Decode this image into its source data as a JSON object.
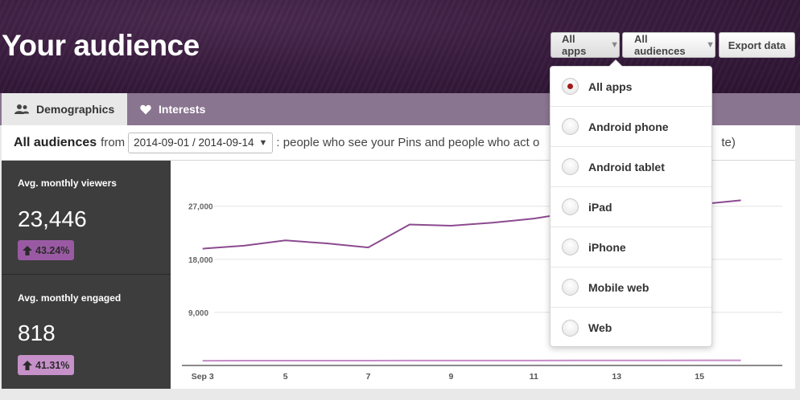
{
  "header": {
    "title": "Your audience",
    "apps_button": "All apps",
    "audiences_button": "All audiences",
    "export_button": "Export data"
  },
  "tabs": [
    {
      "label": "Demographics",
      "icon": "people-icon",
      "active": true
    },
    {
      "label": "Interests",
      "icon": "heart-icon",
      "active": false
    }
  ],
  "filter": {
    "audience": "All audiences",
    "from_word": "from",
    "date_range": "2014-09-01 / 2014-09-14",
    "description_before": ": people who see your Pins and people who act o",
    "description_after": "te)"
  },
  "stats": [
    {
      "label": "Avg. monthly viewers",
      "value": "23,446",
      "change": "43.24%",
      "badge_color": "#9a5aa3"
    },
    {
      "label": "Avg. monthly engaged",
      "value": "818",
      "change": "41.31%",
      "badge_color": "#c690c9"
    }
  ],
  "dropdown": {
    "options": [
      {
        "label": "All apps",
        "checked": true
      },
      {
        "label": "Android phone",
        "checked": false
      },
      {
        "label": "Android tablet",
        "checked": false
      },
      {
        "label": "iPad",
        "checked": false
      },
      {
        "label": "iPhone",
        "checked": false
      },
      {
        "label": "Mobile web",
        "checked": false
      },
      {
        "label": "Web",
        "checked": false
      }
    ]
  },
  "colors": {
    "series_viewers": "#8b4a8f",
    "series_engaged": "#c58bc8",
    "header_bg": "#3a1d40",
    "tabbar_bg": "#8a7590",
    "radio_dot": "#a11a1a"
  },
  "chart_data": {
    "type": "line",
    "x": [
      3,
      4,
      5,
      6,
      7,
      8,
      9,
      10,
      11,
      12,
      13,
      14,
      15,
      16
    ],
    "x_tick_values": [
      3,
      5,
      7,
      9,
      11,
      13,
      15
    ],
    "x_tick_labels": [
      "Sep 3",
      "5",
      "7",
      "9",
      "11",
      "13",
      "15"
    ],
    "y_ticks": [
      9000,
      18000,
      27000
    ],
    "y_tick_labels": [
      "9,000",
      "18,000",
      "27,000"
    ],
    "ylim": [
      0,
      32000
    ],
    "xlim": [
      2.5,
      17.0
    ],
    "grid": true,
    "series": [
      {
        "values": [
          19800,
          20300,
          21200,
          20700,
          20000,
          23900,
          23700,
          24200,
          24900,
          26000,
          26500,
          27000,
          27300,
          28000
        ]
      },
      {
        "values": [
          800,
          810,
          820,
          815,
          810,
          830,
          830,
          835,
          840,
          845,
          850,
          855,
          860,
          865
        ]
      }
    ]
  }
}
